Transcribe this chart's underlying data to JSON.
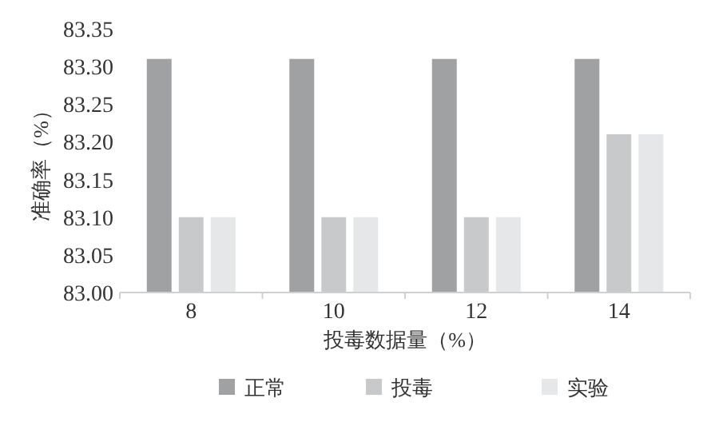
{
  "chart_data": {
    "type": "bar",
    "xlabel": "投毒数据量（%）",
    "ylabel": "准确率（%）",
    "categories": [
      "8",
      "10",
      "12",
      "14"
    ],
    "series": [
      {
        "name": "正常",
        "color": "#a0a1a3",
        "values": [
          83.31,
          83.31,
          83.31,
          83.31
        ]
      },
      {
        "name": "投毒",
        "color": "#c8c9ca",
        "values": [
          83.1,
          83.1,
          83.1,
          83.21
        ]
      },
      {
        "name": "实验",
        "color": "#e6e7e8",
        "values": [
          83.1,
          83.1,
          83.1,
          83.21
        ]
      }
    ],
    "ylim": [
      83.0,
      83.35
    ],
    "yticks": [
      {
        "value": 83.0,
        "label": "83.00"
      },
      {
        "value": 83.05,
        "label": "83.05"
      },
      {
        "value": 83.1,
        "label": "83.10"
      },
      {
        "value": 83.15,
        "label": "83.15"
      },
      {
        "value": 83.2,
        "label": "83.20"
      },
      {
        "value": 83.25,
        "label": "83.25"
      },
      {
        "value": 83.3,
        "label": "83.30"
      },
      {
        "value": 83.35,
        "label": "83.35"
      }
    ],
    "grid": false,
    "legend": "bottom"
  }
}
